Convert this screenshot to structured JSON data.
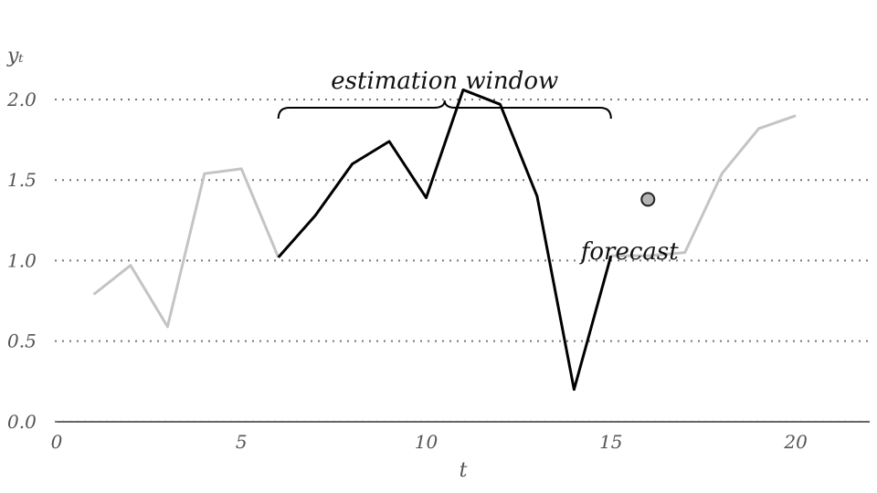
{
  "chart_data": {
    "type": "line",
    "xlabel": "t",
    "ylabel": "yₜ",
    "xlim": [
      0,
      22
    ],
    "ylim": [
      -0.12,
      2.55
    ],
    "x_ticks": [
      0,
      5,
      10,
      15,
      20
    ],
    "x_tick_labels": [
      "0",
      "5",
      "10",
      "15",
      "20"
    ],
    "y_ticks": [
      0.0,
      0.5,
      1.0,
      1.5,
      2.0
    ],
    "y_tick_labels": [
      "0.0",
      "0.5",
      "1.0",
      "1.5",
      "2.0"
    ],
    "grid": "horizontal dotted",
    "series": [
      {
        "x": [
          1,
          2,
          3,
          4,
          5,
          6,
          7,
          8,
          9,
          10,
          11,
          12,
          13,
          14,
          15,
          16,
          17,
          18,
          19,
          20
        ],
        "y": [
          0.79,
          0.97,
          0.59,
          1.54,
          1.57,
          1.02,
          1.28,
          1.6,
          1.74,
          1.39,
          2.06,
          1.97,
          1.4,
          0.2,
          1.03,
          1.03,
          1.05,
          1.54,
          1.82,
          1.9
        ]
      }
    ],
    "highlight_range": [
      6,
      15
    ],
    "forecast_point": {
      "x": 16,
      "y": 1.38
    },
    "annotations": {
      "estimation_window": "estimation window",
      "forecast": "forecast"
    },
    "colors": {
      "highlight": "#000000",
      "context": "#c4c4c4",
      "forecast_fill": "#b5b5b5"
    }
  }
}
